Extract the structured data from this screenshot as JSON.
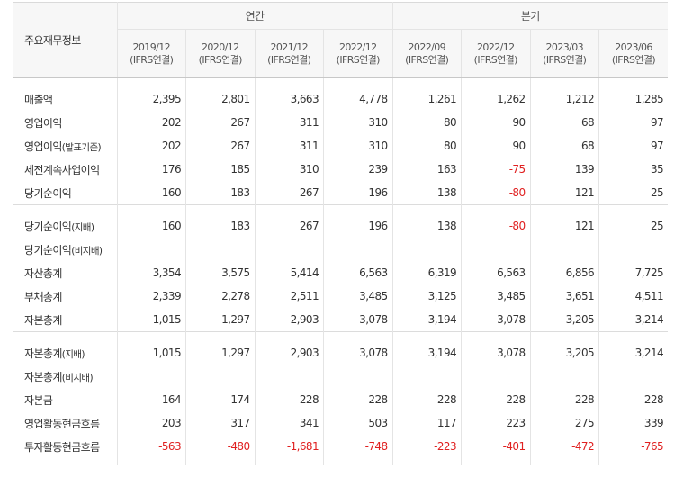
{
  "table": {
    "item_header": "주요재무정보",
    "groups": {
      "annual": "연간",
      "quarterly": "분기"
    },
    "periods": [
      {
        "date": "2019/12",
        "basis": "(IFRS연결)"
      },
      {
        "date": "2020/12",
        "basis": "(IFRS연결)"
      },
      {
        "date": "2021/12",
        "basis": "(IFRS연결)"
      },
      {
        "date": "2022/12",
        "basis": "(IFRS연결)"
      },
      {
        "date": "2022/09",
        "basis": "(IFRS연결)"
      },
      {
        "date": "2022/12",
        "basis": "(IFRS연결)"
      },
      {
        "date": "2023/03",
        "basis": "(IFRS연결)"
      },
      {
        "date": "2023/06",
        "basis": "(IFRS연결)"
      }
    ],
    "sections": [
      {
        "rows": [
          {
            "label": "매출액",
            "suffix": "",
            "values": [
              "2,395",
              "2,801",
              "3,663",
              "4,778",
              "1,261",
              "1,262",
              "1,212",
              "1,285"
            ]
          },
          {
            "label": "영업이익",
            "suffix": "",
            "values": [
              "202",
              "267",
              "311",
              "310",
              "80",
              "90",
              "68",
              "97"
            ]
          },
          {
            "label": "영업이익",
            "suffix": "(발표기준)",
            "values": [
              "202",
              "267",
              "311",
              "310",
              "80",
              "90",
              "68",
              "97"
            ]
          },
          {
            "label": "세전계속사업이익",
            "suffix": "",
            "values": [
              "176",
              "185",
              "310",
              "239",
              "163",
              "-75",
              "139",
              "35"
            ]
          },
          {
            "label": "당기순이익",
            "suffix": "",
            "values": [
              "160",
              "183",
              "267",
              "196",
              "138",
              "-80",
              "121",
              "25"
            ]
          }
        ]
      },
      {
        "rows": [
          {
            "label": "당기순이익",
            "suffix": "(지배)",
            "values": [
              "160",
              "183",
              "267",
              "196",
              "138",
              "-80",
              "121",
              "25"
            ]
          },
          {
            "label": "당기순이익",
            "suffix": "(비지배)",
            "values": [
              "",
              "",
              "",
              "",
              "",
              "",
              "",
              ""
            ]
          },
          {
            "label": "자산총계",
            "suffix": "",
            "values": [
              "3,354",
              "3,575",
              "5,414",
              "6,563",
              "6,319",
              "6,563",
              "6,856",
              "7,725"
            ]
          },
          {
            "label": "부채총계",
            "suffix": "",
            "values": [
              "2,339",
              "2,278",
              "2,511",
              "3,485",
              "3,125",
              "3,485",
              "3,651",
              "4,511"
            ]
          },
          {
            "label": "자본총계",
            "suffix": "",
            "values": [
              "1,015",
              "1,297",
              "2,903",
              "3,078",
              "3,194",
              "3,078",
              "3,205",
              "3,214"
            ]
          }
        ]
      },
      {
        "rows": [
          {
            "label": "자본총계",
            "suffix": "(지배)",
            "values": [
              "1,015",
              "1,297",
              "2,903",
              "3,078",
              "3,194",
              "3,078",
              "3,205",
              "3,214"
            ]
          },
          {
            "label": "자본총계",
            "suffix": "(비지배)",
            "values": [
              "",
              "",
              "",
              "",
              "",
              "",
              "",
              ""
            ]
          },
          {
            "label": "자본금",
            "suffix": "",
            "values": [
              "164",
              "174",
              "228",
              "228",
              "228",
              "228",
              "228",
              "228"
            ]
          },
          {
            "label": "영업활동현금흐름",
            "suffix": "",
            "values": [
              "203",
              "317",
              "341",
              "503",
              "117",
              "223",
              "275",
              "339"
            ]
          },
          {
            "label": "투자활동현금흐름",
            "suffix": "",
            "values": [
              "-563",
              "-480",
              "-1,681",
              "-748",
              "-223",
              "-401",
              "-472",
              "-765"
            ]
          }
        ]
      }
    ],
    "colors": {
      "negative": "#e02020",
      "header_bg": "#f7f7f7",
      "text": "#333333"
    }
  }
}
